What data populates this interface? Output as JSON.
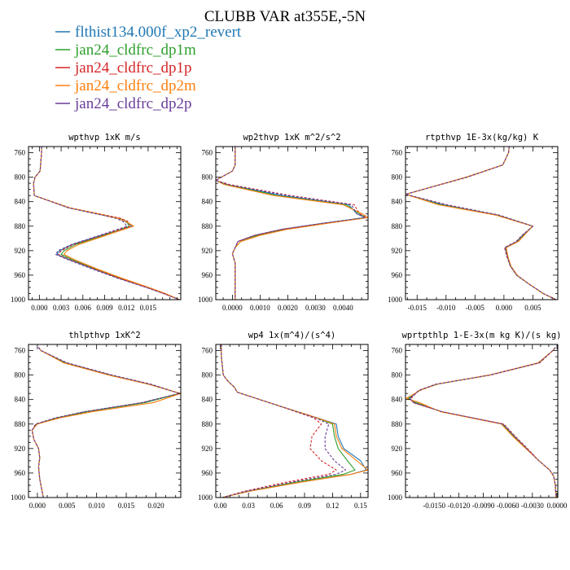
{
  "title": "CLUBB VAR at355E,-5N",
  "legend": [
    {
      "name": "flthist134.000f_xp2_revert",
      "color": "#1f77b4",
      "dash": "solid"
    },
    {
      "name": "jan24_cldfrc_dp1m",
      "color": "#2ca02c",
      "dash": "solid"
    },
    {
      "name": "jan24_cldfrc_dp1p",
      "color": "#d62728",
      "dash": "dashed"
    },
    {
      "name": "jan24_cldfrc_dp2m",
      "color": "#ff7f0e",
      "dash": "solid"
    },
    {
      "name": "jan24_cldfrc_dp2p",
      "color": "#6a3d9a",
      "dash": "dashed"
    }
  ],
  "chart_data": [
    {
      "type": "line",
      "title": "wpthvp  1xK m/s",
      "xlim": [
        -0.0015,
        0.0195
      ],
      "ylim": [
        750,
        1000
      ],
      "xticks": [
        0,
        0.003,
        0.006,
        0.009,
        0.012,
        0.015
      ],
      "xticklabels": [
        "0.000",
        "0.003",
        "0.006",
        "0.009",
        "0.012",
        "0.015"
      ],
      "yticks": [
        760,
        800,
        840,
        880,
        920,
        960,
        1000
      ],
      "yticklabels": [
        "760",
        "800",
        "840",
        "880",
        "920",
        "960",
        "1000"
      ],
      "y": [
        750,
        760,
        790,
        800,
        810,
        830,
        850,
        860,
        867,
        872,
        880,
        895,
        910,
        920,
        926,
        935,
        950,
        965,
        980,
        990,
        1000
      ],
      "series": [
        {
          "values": [
            0.0003,
            0.0003,
            0.0001,
            -0.0006,
            -0.0008,
            -0.0007,
            0.004,
            0.008,
            0.0108,
            0.0118,
            0.0128,
            0.0085,
            0.0045,
            0.0028,
            0.0024,
            0.0042,
            0.0075,
            0.011,
            0.0148,
            0.0172,
            0.0193
          ]
        },
        {
          "values": [
            0.0003,
            0.0003,
            0.0001,
            -0.0006,
            -0.0008,
            -0.0007,
            0.0041,
            0.0082,
            0.011,
            0.012,
            0.0124,
            0.0089,
            0.005,
            0.0034,
            0.003,
            0.0046,
            0.0078,
            0.0112,
            0.015,
            0.0173,
            0.0193
          ]
        },
        {
          "values": [
            0.0003,
            0.0003,
            0.0001,
            -0.0006,
            -0.0008,
            -0.0007,
            0.0042,
            0.0083,
            0.0112,
            0.0122,
            0.0126,
            0.0086,
            0.0047,
            0.003,
            0.0026,
            0.0043,
            0.0076,
            0.011,
            0.0149,
            0.0172,
            0.0193
          ]
        },
        {
          "values": [
            0.0003,
            0.0003,
            0.0001,
            -0.0006,
            -0.0008,
            -0.0007,
            0.0041,
            0.0081,
            0.0108,
            0.0119,
            0.013,
            0.0092,
            0.0054,
            0.0038,
            0.0034,
            0.0049,
            0.008,
            0.0114,
            0.0151,
            0.0174,
            0.0193
          ]
        },
        {
          "values": [
            0.0003,
            0.0003,
            0.0001,
            -0.0006,
            -0.0008,
            -0.0007,
            0.004,
            0.0079,
            0.0105,
            0.0115,
            0.0121,
            0.0083,
            0.0044,
            0.0026,
            0.0022,
            0.004,
            0.0073,
            0.0108,
            0.0147,
            0.0171,
            0.0193
          ]
        }
      ]
    },
    {
      "type": "line",
      "title": "wp2thvp  1xK m^2/s^2",
      "xlim": [
        -0.0006,
        0.0049
      ],
      "ylim": [
        750,
        1000
      ],
      "xticks": [
        0,
        0.001,
        0.002,
        0.003,
        0.004
      ],
      "xticklabels": [
        "0.0000",
        "0.0010",
        "0.0020",
        "0.0030",
        "0.0040"
      ],
      "yticks": [
        760,
        800,
        840,
        880,
        920,
        960,
        1000
      ],
      "yticklabels": [
        "760",
        "800",
        "840",
        "880",
        "920",
        "960",
        "1000"
      ],
      "y": [
        750,
        780,
        790,
        805,
        812,
        830,
        845,
        860,
        866,
        875,
        885,
        895,
        905,
        915,
        925,
        940,
        960,
        980,
        1000
      ],
      "series": [
        {
          "values": [
            0.0001,
            0.0001,
            0.0,
            -0.0006,
            -0.0002,
            0.0018,
            0.0042,
            0.0045,
            0.0048,
            0.0033,
            0.0018,
            0.0008,
            0.0002,
            0.0001,
            0.0,
            0.0001,
            0.0001,
            0.0001,
            0.0001
          ]
        },
        {
          "values": [
            0.0001,
            0.0001,
            0.0,
            -0.0006,
            -0.0002,
            0.0016,
            0.0041,
            0.0046,
            0.0048,
            0.0034,
            0.0019,
            0.0009,
            0.0003,
            0.0001,
            0.0,
            0.0001,
            0.0001,
            0.0001,
            0.0001
          ]
        },
        {
          "values": [
            0.0001,
            0.0001,
            0.0,
            -0.0006,
            -0.0001,
            0.0021,
            0.0044,
            0.0046,
            0.0049,
            0.0034,
            0.0018,
            0.0008,
            0.0002,
            0.0001,
            0.0,
            0.0001,
            0.0001,
            0.0001,
            0.0001
          ]
        },
        {
          "values": [
            0.0001,
            0.0001,
            0.0,
            -0.0006,
            -0.0003,
            0.0015,
            0.004,
            0.0047,
            0.0049,
            0.0035,
            0.002,
            0.001,
            0.0003,
            0.0001,
            0.0,
            0.0001,
            0.0001,
            0.0001,
            0.0001
          ]
        },
        {
          "values": [
            0.0001,
            0.0001,
            0.0,
            -0.0006,
            -0.0002,
            0.002,
            0.0043,
            0.0045,
            0.0048,
            0.0033,
            0.0018,
            0.0008,
            0.0002,
            0.0001,
            0.0,
            0.0001,
            0.0001,
            0.0001,
            0.0001
          ]
        }
      ]
    },
    {
      "type": "line",
      "title": "rtpthvp  1E-3x(kg/kg) K",
      "xlim": [
        -0.017,
        0.0093
      ],
      "ylim": [
        750,
        1000
      ],
      "xticks": [
        -0.015,
        -0.01,
        -0.005,
        0,
        0.005
      ],
      "xticklabels": [
        "-0.015",
        "-0.010",
        "-0.005",
        "0.000",
        "0.005"
      ],
      "yticks": [
        760,
        800,
        840,
        880,
        920,
        960,
        1000
      ],
      "yticklabels": [
        "760",
        "800",
        "840",
        "880",
        "920",
        "960",
        "1000"
      ],
      "y": [
        750,
        760,
        780,
        800,
        828,
        845,
        862,
        880,
        895,
        905,
        915,
        930,
        945,
        960,
        975,
        990,
        1000
      ],
      "series": [
        {
          "values": [
            0.0009,
            0.0008,
            -0.0002,
            -0.0065,
            -0.017,
            -0.0105,
            -0.001,
            0.005,
            0.0032,
            0.0022,
            0.0002,
            0.0006,
            0.0011,
            0.0022,
            0.0044,
            0.0068,
            0.009
          ]
        },
        {
          "values": [
            0.0009,
            0.0008,
            -0.0002,
            -0.0065,
            -0.017,
            -0.011,
            -0.0012,
            0.005,
            0.0034,
            0.0024,
            0.0003,
            0.0006,
            0.0011,
            0.0022,
            0.0044,
            0.0068,
            0.009
          ]
        },
        {
          "values": [
            0.0009,
            0.0008,
            -0.0002,
            -0.0063,
            -0.017,
            -0.0098,
            -0.0008,
            0.005,
            0.0031,
            0.0021,
            0.0001,
            0.0005,
            0.0011,
            0.0022,
            0.0044,
            0.0068,
            0.009
          ]
        },
        {
          "values": [
            0.0009,
            0.0008,
            -0.0002,
            -0.0066,
            -0.017,
            -0.0113,
            -0.0014,
            0.0049,
            0.0035,
            0.0025,
            0.0004,
            0.0007,
            0.0012,
            0.0023,
            0.0044,
            0.0068,
            0.009
          ]
        },
        {
          "values": [
            0.0009,
            0.0008,
            -0.0002,
            -0.0064,
            -0.017,
            -0.01,
            -0.0009,
            0.005,
            0.0032,
            0.0022,
            0.0002,
            0.0006,
            0.0011,
            0.0022,
            0.0044,
            0.0068,
            0.009
          ]
        }
      ]
    },
    {
      "type": "line",
      "title": "thlpthvp  1xK^2",
      "xlim": [
        -0.0015,
        0.0242
      ],
      "ylim": [
        750,
        1000
      ],
      "xticks": [
        0,
        0.005,
        0.01,
        0.015,
        0.02
      ],
      "xticklabels": [
        "0.000",
        "0.005",
        "0.010",
        "0.015",
        "0.020"
      ],
      "yticks": [
        760,
        800,
        840,
        880,
        920,
        960,
        1000
      ],
      "yticklabels": [
        "760",
        "800",
        "840",
        "880",
        "920",
        "960",
        "1000"
      ],
      "y": [
        755,
        760,
        780,
        800,
        815,
        830,
        845,
        860,
        870,
        880,
        890,
        905,
        920,
        935,
        950,
        970,
        990,
        1000
      ],
      "series": [
        {
          "values": [
            0.0002,
            0.0006,
            0.0048,
            0.0124,
            0.019,
            0.024,
            0.0178,
            0.008,
            0.0032,
            -0.0002,
            -0.0009,
            -0.0006,
            0.0002,
            0.0004,
            0.0002,
            0.0004,
            0.0008,
            0.001
          ]
        },
        {
          "values": [
            0.0002,
            0.0006,
            0.0046,
            0.0122,
            0.0188,
            0.024,
            0.0182,
            0.0084,
            0.0034,
            -0.0001,
            -0.0009,
            -0.0006,
            0.0002,
            0.0004,
            0.0002,
            0.0004,
            0.0008,
            0.001
          ]
        },
        {
          "values": [
            0.0002,
            0.0006,
            0.005,
            0.0126,
            0.0192,
            0.024,
            0.0176,
            0.0078,
            0.003,
            -0.0003,
            -0.0009,
            -0.0006,
            0.0002,
            0.0004,
            0.0002,
            0.0004,
            0.0008,
            0.001
          ]
        },
        {
          "values": [
            0.0002,
            0.0006,
            0.0044,
            0.012,
            0.0187,
            0.0242,
            0.0196,
            0.0092,
            0.0038,
            0.0,
            -0.0009,
            -0.0006,
            0.0002,
            0.0004,
            0.0002,
            0.0004,
            0.0008,
            0.001
          ]
        },
        {
          "values": [
            0.0002,
            0.0006,
            0.0049,
            0.0125,
            0.0191,
            0.024,
            0.0178,
            0.008,
            0.0031,
            -0.0002,
            -0.0009,
            -0.0006,
            0.0002,
            0.0004,
            0.0002,
            0.0004,
            0.0008,
            0.001
          ]
        }
      ]
    },
    {
      "type": "line",
      "title": "wp4  1x(m^4)/(s^4)",
      "xlim": [
        -0.005,
        0.158
      ],
      "ylim": [
        750,
        1000
      ],
      "xticks": [
        0,
        0.03,
        0.06,
        0.09,
        0.12,
        0.15
      ],
      "xticklabels": [
        "0.00",
        "0.03",
        "0.06",
        "0.09",
        "0.12",
        "0.15"
      ],
      "yticks": [
        760,
        800,
        840,
        880,
        920,
        960,
        1000
      ],
      "yticklabels": [
        "760",
        "800",
        "840",
        "880",
        "920",
        "960",
        "1000"
      ],
      "y": [
        750,
        770,
        800,
        810,
        820,
        828,
        850,
        870,
        880,
        900,
        920,
        940,
        955,
        962,
        975,
        990,
        1000
      ],
      "series": [
        {
          "values": [
            0.001,
            0.001,
            0.003,
            0.008,
            0.015,
            0.018,
            0.062,
            0.104,
            0.124,
            0.126,
            0.132,
            0.15,
            0.156,
            0.14,
            0.085,
            0.03,
            0.002
          ]
        },
        {
          "values": [
            0.001,
            0.001,
            0.003,
            0.008,
            0.015,
            0.018,
            0.062,
            0.103,
            0.12,
            0.122,
            0.126,
            0.136,
            0.144,
            0.132,
            0.08,
            0.028,
            0.002
          ]
        },
        {
          "values": [
            0.001,
            0.001,
            0.003,
            0.008,
            0.015,
            0.018,
            0.062,
            0.1,
            0.108,
            0.098,
            0.096,
            0.108,
            0.124,
            0.116,
            0.07,
            0.025,
            0.002
          ]
        },
        {
          "values": [
            0.001,
            0.001,
            0.003,
            0.008,
            0.015,
            0.018,
            0.062,
            0.104,
            0.122,
            0.124,
            0.13,
            0.146,
            0.158,
            0.14,
            0.086,
            0.03,
            0.002
          ]
        },
        {
          "values": [
            0.001,
            0.001,
            0.003,
            0.008,
            0.015,
            0.018,
            0.062,
            0.102,
            0.116,
            0.112,
            0.112,
            0.122,
            0.134,
            0.124,
            0.076,
            0.027,
            0.002
          ]
        }
      ]
    },
    {
      "type": "line",
      "title": "wprtpthlp  1-E-3x(m kg K)/(s kg)",
      "xlim": [
        -0.0185,
        0.0001
      ],
      "ylim": [
        750,
        1000
      ],
      "xticks": [
        -0.015,
        -0.012,
        -0.009,
        -0.006,
        -0.003,
        0
      ],
      "xticklabels": [
        "-0.0150",
        "-0.0120",
        "-0.0090",
        "-0.0060",
        "-0.0030",
        "0.0000"
      ],
      "yticks": [
        760,
        800,
        840,
        880,
        920,
        960,
        1000
      ],
      "yticklabels": [
        "760",
        "800",
        "840",
        "880",
        "920",
        "960",
        "1000"
      ],
      "y": [
        755,
        760,
        780,
        800,
        815,
        825,
        838,
        845,
        860,
        880,
        900,
        920,
        940,
        955,
        965,
        980,
        1000
      ],
      "series": [
        {
          "values": [
            -0.0002,
            -0.0005,
            -0.0022,
            -0.0082,
            -0.0148,
            -0.0168,
            -0.018,
            -0.0175,
            -0.014,
            -0.0066,
            -0.0052,
            -0.0037,
            -0.0022,
            -0.0009,
            -0.0004,
            -0.0002,
            -0.0001
          ]
        },
        {
          "values": [
            -0.0002,
            -0.0005,
            -0.0022,
            -0.0082,
            -0.0146,
            -0.0168,
            -0.0182,
            -0.0172,
            -0.0141,
            -0.0067,
            -0.0053,
            -0.0037,
            -0.0022,
            -0.0009,
            -0.0004,
            -0.0002,
            -0.0001
          ]
        },
        {
          "values": [
            -0.0002,
            -0.0005,
            -0.0021,
            -0.0081,
            -0.0148,
            -0.0169,
            -0.0178,
            -0.0176,
            -0.014,
            -0.0065,
            -0.0051,
            -0.0036,
            -0.0022,
            -0.0009,
            -0.0004,
            -0.0002,
            -0.0001
          ]
        },
        {
          "values": [
            -0.0002,
            -0.0005,
            -0.0023,
            -0.0083,
            -0.0147,
            -0.0167,
            -0.0184,
            -0.0168,
            -0.0142,
            -0.0068,
            -0.0054,
            -0.0038,
            -0.0022,
            -0.0009,
            -0.0004,
            -0.0002,
            -0.0001
          ]
        },
        {
          "values": [
            -0.0002,
            -0.0005,
            -0.0022,
            -0.0082,
            -0.0148,
            -0.0168,
            -0.018,
            -0.0175,
            -0.014,
            -0.0066,
            -0.0052,
            -0.0037,
            -0.0022,
            -0.0009,
            -0.0004,
            -0.0002,
            -0.0001
          ]
        }
      ]
    }
  ]
}
